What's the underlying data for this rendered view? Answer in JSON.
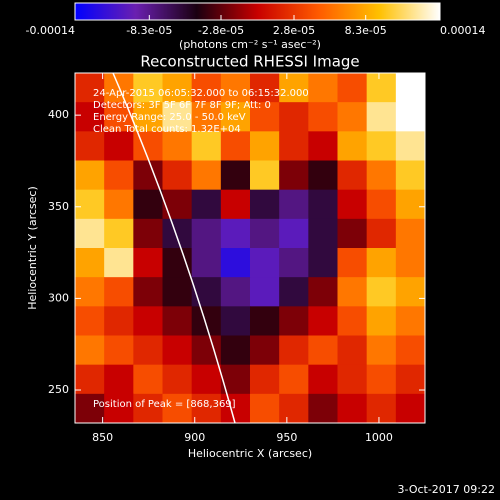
{
  "chart_data": {
    "type": "heatmap",
    "title": "Reconstructed RHESSI Image",
    "x_label": "Heliocentric X (arcsec)",
    "y_label": "Heliocentric Y (arcsec)",
    "colorbar_label": "(photons cm⁻² s⁻¹ asec⁻²)",
    "annotations": [
      "24-Apr-2015 06:05:32.000 to 06:15:32.000",
      "Detectors: 3F 5F 6F 7F 8F 9F; Att: 0",
      "Energy Range: 25.0 - 50.0 keV",
      "Clean   Total counts: 1.32E+04"
    ],
    "peak_label": "Position of Peak = [868,369]",
    "footer": "3-Oct-2017 09:22",
    "xlim": [
      835,
      1025
    ],
    "ylim": [
      232,
      423
    ],
    "xticks": [
      850,
      900,
      950,
      1000
    ],
    "yticks": [
      250,
      300,
      350,
      400
    ],
    "zlim": [
      -0.00014,
      0.00014
    ],
    "zticks": [
      -0.00014,
      {
        "value": -8.3e-05,
        "label": "-8.3e-05"
      },
      {
        "value": -2.8e-05,
        "label": "-2.8e-05"
      },
      {
        "value": 2.8e-05,
        "label": "2.8e-05"
      },
      {
        "value": 8.3e-05,
        "label": "8.3e-05"
      },
      0.00014
    ],
    "colormap": [
      "#0000ff",
      "#6a1fb0",
      "#1a0010",
      "#c80000",
      "#ff5a00",
      "#ffc000",
      "#ffffff"
    ],
    "z": [
      [
        2e-05,
        6e-05,
        0.0001,
        8e-05,
        4e-05,
        6e-05,
        2e-05,
        8e-05,
        6e-05,
        4e-05,
        0.0001,
        0.00014
      ],
      [
        0,
        4e-05,
        8e-05,
        0.00012,
        6e-05,
        8e-05,
        4e-05,
        2e-05,
        4e-05,
        6e-05,
        0.00012,
        0.00014
      ],
      [
        2e-05,
        0,
        4e-05,
        6e-05,
        0.0001,
        4e-05,
        8e-05,
        2e-05,
        0,
        8e-05,
        0.0001,
        0.00012
      ],
      [
        8e-05,
        4e-05,
        -2e-05,
        2e-05,
        6e-05,
        -4e-05,
        0.0001,
        -2e-05,
        -4e-05,
        2e-05,
        6e-05,
        0.0001
      ],
      [
        0.0001,
        6e-05,
        -4e-05,
        -2e-05,
        -6e-05,
        0,
        -6e-05,
        -8e-05,
        -6e-05,
        0,
        4e-05,
        8e-05
      ],
      [
        0.00012,
        0.0001,
        -2e-05,
        -6e-05,
        -8e-05,
        -0.0001,
        -8e-05,
        -0.0001,
        -6e-05,
        -2e-05,
        2e-05,
        6e-05
      ],
      [
        8e-05,
        0.00012,
        0,
        -4e-05,
        -8e-05,
        -0.00012,
        -0.0001,
        -8e-05,
        -6e-05,
        4e-05,
        8e-05,
        6e-05
      ],
      [
        6e-05,
        4e-05,
        -2e-05,
        -4e-05,
        -6e-05,
        -8e-05,
        -0.0001,
        -6e-05,
        -2e-05,
        6e-05,
        0.0001,
        8e-05
      ],
      [
        4e-05,
        2e-05,
        0,
        -2e-05,
        -4e-05,
        -6e-05,
        -4e-05,
        -2e-05,
        0,
        4e-05,
        8e-05,
        6e-05
      ],
      [
        6e-05,
        4e-05,
        2e-05,
        0,
        -2e-05,
        -4e-05,
        -2e-05,
        2e-05,
        4e-05,
        2e-05,
        6e-05,
        4e-05
      ],
      [
        2e-05,
        0,
        4e-05,
        2e-05,
        0,
        -2e-05,
        2e-05,
        4e-05,
        0,
        2e-05,
        4e-05,
        2e-05
      ],
      [
        -2e-05,
        0,
        2e-05,
        4e-05,
        2e-05,
        0,
        4e-05,
        2e-05,
        -2e-05,
        0,
        2e-05,
        0
      ]
    ]
  }
}
